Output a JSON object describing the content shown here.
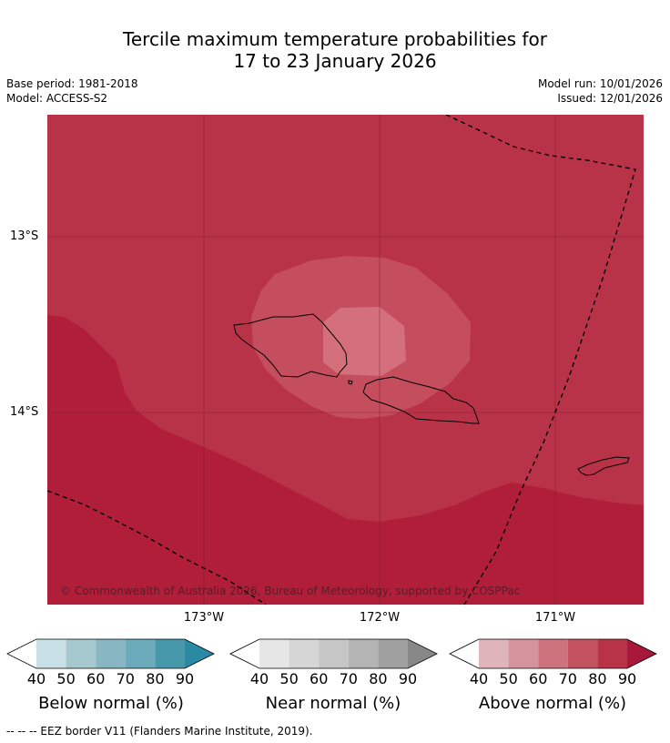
{
  "title": {
    "line1": "Tercile maximum temperature probabilities for",
    "line2": "17 to 23 January 2026"
  },
  "meta": {
    "base_period": "Base period: 1981-2018",
    "model": "Model: ACCESS-S2",
    "model_run": "Model run: 10/01/2026",
    "issued": "Issued: 12/01/2026"
  },
  "map": {
    "lat_labels": [
      "13°S",
      "14°S"
    ],
    "lon_labels": [
      "173°W",
      "172°W",
      "171°W"
    ],
    "copyright": "© Commonwealth of Australia 2026, Bureau of Meteorology, supported by COSPPac",
    "colors": {
      "above_60_70": "#d4707c",
      "above_70_80": "#c44e5e",
      "above_80_90": "#b93348",
      "above_90": "#b01e3a",
      "coast": "#000000",
      "grid": "#7a1e2e",
      "eez": "#000000"
    }
  },
  "colorbars": [
    {
      "label": "Below normal (%)",
      "ticks": [
        "40",
        "50",
        "60",
        "70",
        "80",
        "90"
      ],
      "colors": [
        "#ffffff",
        "#c8e0e6",
        "#a6c8cf",
        "#88b6c3",
        "#6babbc",
        "#4898ac",
        "#2b8aa3"
      ]
    },
    {
      "label": "Near normal (%)",
      "ticks": [
        "40",
        "50",
        "60",
        "70",
        "80",
        "90"
      ],
      "colors": [
        "#ffffff",
        "#e6e6e6",
        "#d6d6d6",
        "#c6c6c6",
        "#b4b4b4",
        "#a0a0a0",
        "#888888"
      ]
    },
    {
      "label": "Above normal (%)",
      "ticks": [
        "40",
        "50",
        "60",
        "70",
        "80",
        "90"
      ],
      "colors": [
        "#ffffff",
        "#e0b4bb",
        "#d4939d",
        "#cc737e",
        "#c4515f",
        "#b93348",
        "#a7183a"
      ]
    }
  ],
  "footer": "--  --  -- EEZ border V11 (Flanders Marine Institute, 2019)."
}
